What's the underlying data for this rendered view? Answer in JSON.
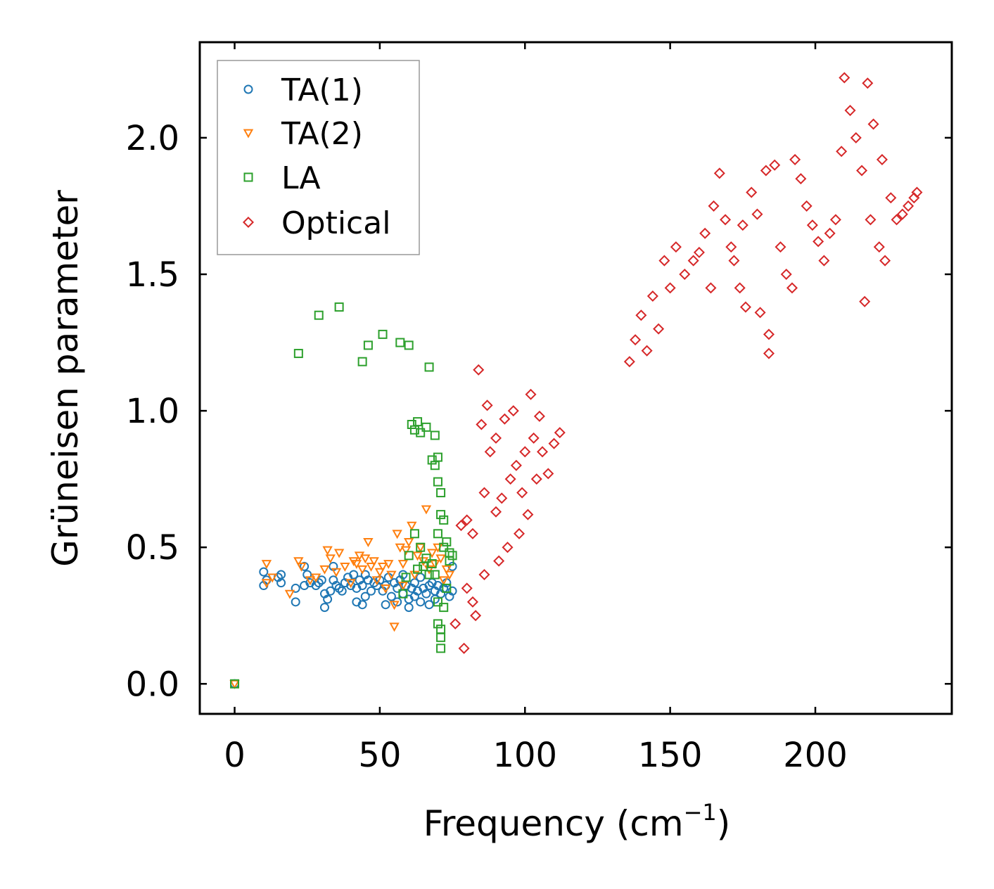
{
  "chart_data": {
    "type": "scatter",
    "title": "",
    "xlabel": "Frequency (cm",
    "xlabel_superscript": "−1",
    "xlabel_suffix": ")",
    "ylabel": "Grüneisen parameter",
    "xlim": [
      -12,
      247
    ],
    "ylim": [
      -0.11,
      2.35
    ],
    "xticks": [
      0,
      50,
      100,
      150,
      200
    ],
    "xtick_labels": [
      "0",
      "50",
      "100",
      "150",
      "200"
    ],
    "yticks": [
      0.0,
      0.5,
      1.0,
      1.5,
      2.0
    ],
    "ytick_labels": [
      "0.0",
      "0.5",
      "1.0",
      "1.5",
      "2.0"
    ],
    "grid": false,
    "legend_position": "top-left",
    "series": [
      {
        "name": "TA(1)",
        "marker": "circle",
        "color": "#1f77b4",
        "points": [
          [
            0,
            0.0
          ],
          [
            10,
            0.41
          ],
          [
            10,
            0.36
          ],
          [
            11,
            0.38
          ],
          [
            15,
            0.39
          ],
          [
            16,
            0.37
          ],
          [
            16,
            0.4
          ],
          [
            21,
            0.35
          ],
          [
            21,
            0.3
          ],
          [
            24,
            0.36
          ],
          [
            24,
            0.43
          ],
          [
            25,
            0.4
          ],
          [
            26,
            0.37
          ],
          [
            28,
            0.36
          ],
          [
            29,
            0.37
          ],
          [
            30,
            0.38
          ],
          [
            31,
            0.33
          ],
          [
            31,
            0.28
          ],
          [
            32,
            0.31
          ],
          [
            33,
            0.34
          ],
          [
            34,
            0.43
          ],
          [
            34,
            0.38
          ],
          [
            35,
            0.36
          ],
          [
            36,
            0.35
          ],
          [
            37,
            0.34
          ],
          [
            38,
            0.37
          ],
          [
            39,
            0.39
          ],
          [
            40,
            0.36
          ],
          [
            41,
            0.4
          ],
          [
            42,
            0.35
          ],
          [
            42,
            0.3
          ],
          [
            43,
            0.38
          ],
          [
            44,
            0.36
          ],
          [
            44,
            0.29
          ],
          [
            45,
            0.32
          ],
          [
            45,
            0.4
          ],
          [
            46,
            0.38
          ],
          [
            47,
            0.34
          ],
          [
            48,
            0.37
          ],
          [
            49,
            0.36
          ],
          [
            50,
            0.38
          ],
          [
            51,
            0.34
          ],
          [
            52,
            0.36
          ],
          [
            52,
            0.29
          ],
          [
            53,
            0.39
          ],
          [
            54,
            0.32
          ],
          [
            55,
            0.37
          ],
          [
            56,
            0.35
          ],
          [
            56,
            0.3
          ],
          [
            57,
            0.38
          ],
          [
            58,
            0.33
          ],
          [
            58,
            0.4
          ],
          [
            59,
            0.36
          ],
          [
            60,
            0.28
          ],
          [
            60,
            0.31
          ],
          [
            61,
            0.35
          ],
          [
            62,
            0.37
          ],
          [
            62,
            0.32
          ],
          [
            63,
            0.34
          ],
          [
            64,
            0.39
          ],
          [
            64,
            0.3
          ],
          [
            65,
            0.35
          ],
          [
            66,
            0.33
          ],
          [
            67,
            0.36
          ],
          [
            67,
            0.29
          ],
          [
            68,
            0.37
          ],
          [
            69,
            0.31
          ],
          [
            69,
            0.34
          ],
          [
            70,
            0.36
          ],
          [
            71,
            0.33
          ],
          [
            72,
            0.35
          ],
          [
            73,
            0.37
          ],
          [
            74,
            0.32
          ],
          [
            75,
            0.34
          ],
          [
            75,
            0.43
          ]
        ]
      },
      {
        "name": "TA(2)",
        "marker": "triangle-down",
        "color": "#ff7f0e",
        "points": [
          [
            0,
            0.0
          ],
          [
            11,
            0.44
          ],
          [
            11,
            0.37
          ],
          [
            13,
            0.39
          ],
          [
            19,
            0.33
          ],
          [
            22,
            0.45
          ],
          [
            23,
            0.43
          ],
          [
            26,
            0.38
          ],
          [
            28,
            0.39
          ],
          [
            31,
            0.42
          ],
          [
            32,
            0.49
          ],
          [
            33,
            0.46
          ],
          [
            35,
            0.41
          ],
          [
            36,
            0.48
          ],
          [
            38,
            0.43
          ],
          [
            40,
            0.37
          ],
          [
            41,
            0.45
          ],
          [
            42,
            0.44
          ],
          [
            43,
            0.47
          ],
          [
            44,
            0.42
          ],
          [
            45,
            0.46
          ],
          [
            46,
            0.52
          ],
          [
            47,
            0.43
          ],
          [
            48,
            0.45
          ],
          [
            49,
            0.38
          ],
          [
            50,
            0.41
          ],
          [
            51,
            0.43
          ],
          [
            52,
            0.35
          ],
          [
            53,
            0.44
          ],
          [
            54,
            0.4
          ],
          [
            55,
            0.29
          ],
          [
            55,
            0.21
          ],
          [
            56,
            0.55
          ],
          [
            57,
            0.5
          ],
          [
            58,
            0.44
          ],
          [
            58,
            0.36
          ],
          [
            59,
            0.49
          ],
          [
            60,
            0.52
          ],
          [
            61,
            0.58
          ],
          [
            62,
            0.4
          ],
          [
            63,
            0.47
          ],
          [
            64,
            0.5
          ],
          [
            65,
            0.45
          ],
          [
            66,
            0.64
          ],
          [
            67,
            0.42
          ],
          [
            68,
            0.48
          ],
          [
            69,
            0.44
          ],
          [
            70,
            0.5
          ],
          [
            71,
            0.46
          ],
          [
            72,
            0.38
          ],
          [
            73,
            0.42
          ],
          [
            74,
            0.4
          ]
        ]
      },
      {
        "name": "LA",
        "marker": "square",
        "color": "#2ca02c",
        "points": [
          [
            0,
            0.0
          ],
          [
            22,
            1.21
          ],
          [
            29,
            1.35
          ],
          [
            36,
            1.38
          ],
          [
            44,
            1.18
          ],
          [
            46,
            1.24
          ],
          [
            51,
            1.28
          ],
          [
            57,
            1.25
          ],
          [
            60,
            1.24
          ],
          [
            67,
            1.16
          ],
          [
            61,
            0.95
          ],
          [
            62,
            0.93
          ],
          [
            63,
            0.96
          ],
          [
            64,
            0.92
          ],
          [
            66,
            0.94
          ],
          [
            69,
            0.91
          ],
          [
            68,
            0.82
          ],
          [
            69,
            0.8
          ],
          [
            70,
            0.83
          ],
          [
            70,
            0.74
          ],
          [
            71,
            0.7
          ],
          [
            71,
            0.62
          ],
          [
            72,
            0.6
          ],
          [
            70,
            0.55
          ],
          [
            72,
            0.5
          ],
          [
            73,
            0.52
          ],
          [
            74,
            0.48
          ],
          [
            75,
            0.47
          ],
          [
            69,
            0.4
          ],
          [
            70,
            0.3
          ],
          [
            70,
            0.22
          ],
          [
            71,
            0.2
          ],
          [
            71,
            0.17
          ],
          [
            71,
            0.13
          ],
          [
            72,
            0.28
          ],
          [
            73,
            0.35
          ],
          [
            74,
            0.45
          ],
          [
            64,
            0.5
          ],
          [
            65,
            0.43
          ],
          [
            66,
            0.46
          ],
          [
            67,
            0.4
          ],
          [
            68,
            0.44
          ],
          [
            62,
            0.55
          ],
          [
            63,
            0.42
          ],
          [
            60,
            0.47
          ],
          [
            59,
            0.39
          ],
          [
            58,
            0.33
          ]
        ]
      },
      {
        "name": "Optical",
        "marker": "diamond",
        "color": "#d62728",
        "points": [
          [
            76,
            0.22
          ],
          [
            78,
            0.58
          ],
          [
            79,
            0.13
          ],
          [
            80,
            0.35
          ],
          [
            80,
            0.6
          ],
          [
            82,
            0.55
          ],
          [
            82,
            0.3
          ],
          [
            83,
            0.25
          ],
          [
            84,
            1.15
          ],
          [
            85,
            0.95
          ],
          [
            86,
            0.7
          ],
          [
            86,
            0.4
          ],
          [
            87,
            1.02
          ],
          [
            88,
            0.85
          ],
          [
            90,
            0.63
          ],
          [
            90,
            0.9
          ],
          [
            91,
            0.45
          ],
          [
            92,
            0.68
          ],
          [
            93,
            0.97
          ],
          [
            94,
            0.5
          ],
          [
            95,
            0.75
          ],
          [
            96,
            1.0
          ],
          [
            97,
            0.8
          ],
          [
            98,
            0.55
          ],
          [
            99,
            0.7
          ],
          [
            100,
            0.85
          ],
          [
            101,
            0.62
          ],
          [
            102,
            1.06
          ],
          [
            103,
            0.9
          ],
          [
            104,
            0.75
          ],
          [
            105,
            0.98
          ],
          [
            106,
            0.85
          ],
          [
            108,
            0.77
          ],
          [
            110,
            0.88
          ],
          [
            112,
            0.92
          ],
          [
            136,
            1.18
          ],
          [
            138,
            1.26
          ],
          [
            140,
            1.35
          ],
          [
            142,
            1.22
          ],
          [
            144,
            1.42
          ],
          [
            146,
            1.3
          ],
          [
            148,
            1.55
          ],
          [
            150,
            1.45
          ],
          [
            152,
            1.6
          ],
          [
            155,
            1.5
          ],
          [
            158,
            1.55
          ],
          [
            160,
            1.58
          ],
          [
            162,
            1.65
          ],
          [
            164,
            1.45
          ],
          [
            165,
            1.75
          ],
          [
            167,
            1.87
          ],
          [
            169,
            1.7
          ],
          [
            171,
            1.6
          ],
          [
            172,
            1.55
          ],
          [
            174,
            1.45
          ],
          [
            175,
            1.68
          ],
          [
            176,
            1.38
          ],
          [
            178,
            1.8
          ],
          [
            180,
            1.72
          ],
          [
            181,
            1.36
          ],
          [
            183,
            1.88
          ],
          [
            184,
            1.28
          ],
          [
            184,
            1.21
          ],
          [
            186,
            1.9
          ],
          [
            188,
            1.6
          ],
          [
            190,
            1.5
          ],
          [
            192,
            1.45
          ],
          [
            193,
            1.92
          ],
          [
            195,
            1.85
          ],
          [
            197,
            1.75
          ],
          [
            199,
            1.68
          ],
          [
            201,
            1.62
          ],
          [
            203,
            1.55
          ],
          [
            205,
            1.65
          ],
          [
            207,
            1.7
          ],
          [
            209,
            1.95
          ],
          [
            210,
            2.22
          ],
          [
            212,
            2.1
          ],
          [
            214,
            2.0
          ],
          [
            216,
            1.88
          ],
          [
            217,
            1.4
          ],
          [
            218,
            2.2
          ],
          [
            219,
            1.7
          ],
          [
            220,
            2.05
          ],
          [
            222,
            1.6
          ],
          [
            223,
            1.92
          ],
          [
            224,
            1.55
          ],
          [
            226,
            1.78
          ],
          [
            228,
            1.7
          ],
          [
            230,
            1.72
          ],
          [
            232,
            1.75
          ],
          [
            234,
            1.78
          ],
          [
            235,
            1.8
          ]
        ]
      }
    ]
  }
}
